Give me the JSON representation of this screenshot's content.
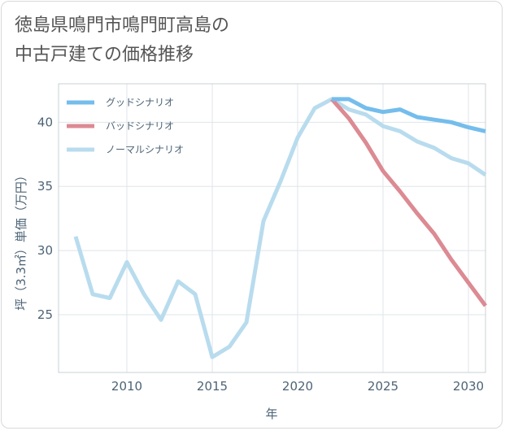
{
  "title_lines": [
    "徳島県鳴門市鳴門町高島の",
    "中古戸建ての価格推移"
  ],
  "chart_data": {
    "type": "line",
    "xlabel": "年",
    "ylabel": "坪（3.3㎡）単価（万円）",
    "xlim": [
      2006,
      2031
    ],
    "ylim": [
      20.5,
      43
    ],
    "xticks": [
      2010,
      2015,
      2020,
      2025,
      2030
    ],
    "yticks": [
      25,
      30,
      35,
      40
    ],
    "grid": true,
    "legend_position": "top-left",
    "series": [
      {
        "name": "グッドシナリオ",
        "color": "#74bdec",
        "x": [
          2022,
          2023,
          2024,
          2025,
          2026,
          2027,
          2028,
          2029,
          2030,
          2031
        ],
        "values": [
          41.8,
          41.8,
          41.1,
          40.8,
          41.0,
          40.4,
          40.2,
          40.0,
          39.6,
          39.3
        ]
      },
      {
        "name": "バッドシナリオ",
        "color": "#dc8a93",
        "x": [
          2022,
          2023,
          2024,
          2025,
          2026,
          2027,
          2028,
          2029,
          2030,
          2031
        ],
        "values": [
          41.8,
          40.3,
          38.4,
          36.2,
          34.6,
          32.9,
          31.3,
          29.3,
          27.5,
          25.7
        ]
      },
      {
        "name": "ノーマルシナリオ",
        "color": "#b8dcee",
        "x": [
          2007,
          2008,
          2009,
          2010,
          2011,
          2012,
          2013,
          2014,
          2015,
          2016,
          2017,
          2018,
          2019,
          2020,
          2021,
          2022,
          2023,
          2024,
          2025,
          2026,
          2027,
          2028,
          2029,
          2030,
          2031
        ],
        "values": [
          31.1,
          26.6,
          26.3,
          29.1,
          26.6,
          24.6,
          27.6,
          26.6,
          21.7,
          22.5,
          24.4,
          32.3,
          35.4,
          38.8,
          41.1,
          41.8,
          41.0,
          40.6,
          39.7,
          39.3,
          38.5,
          38.0,
          37.2,
          36.8,
          35.9
        ]
      }
    ]
  }
}
